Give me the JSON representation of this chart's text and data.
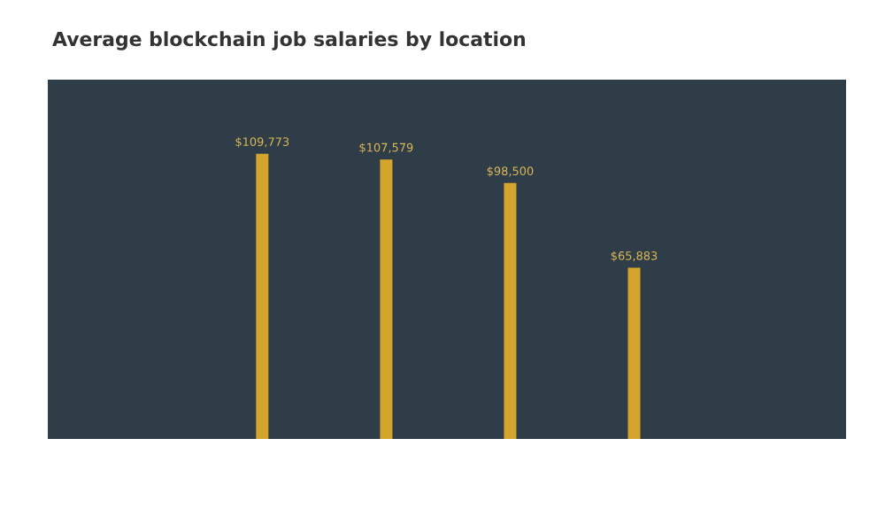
{
  "chart_data": {
    "type": "bar",
    "title": "Average blockchain job salaries by location",
    "categories": [
      null,
      null,
      null,
      null
    ],
    "values": [
      109773,
      107579,
      98500,
      65883
    ],
    "value_labels": [
      "$109,773",
      "$107,579",
      "$98,500",
      "$65,883"
    ],
    "color": "#d4a52c"
  }
}
